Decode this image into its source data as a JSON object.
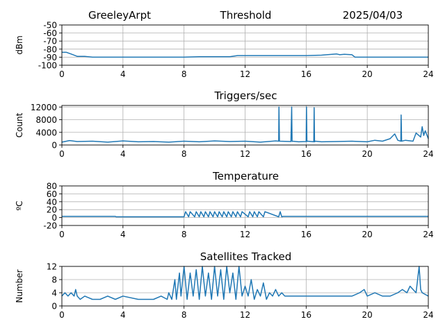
{
  "header": {
    "station": "GreeleyArpt",
    "date": "2025/04/03"
  },
  "colors": {
    "series": "#1f77b4",
    "grid": "#b0b0b0",
    "axis": "#000000"
  },
  "chart_data": [
    {
      "type": "line",
      "title": "Threshold",
      "xlabel": "",
      "ylabel": "dBm",
      "xlim": [
        0,
        24
      ],
      "ylim": [
        -100,
        -50
      ],
      "xticks": [
        0,
        4,
        8,
        12,
        16,
        20,
        24
      ],
      "yticks": [
        -100,
        -90,
        -80,
        -70,
        -60,
        -50
      ],
      "grid": true,
      "series": [
        {
          "x": [
            0,
            0.3,
            0.6,
            1.0,
            1.5,
            2,
            3,
            4,
            6,
            8,
            9,
            10,
            11,
            11.5,
            12,
            13,
            14,
            15,
            16,
            17,
            18,
            18.2,
            18.5,
            19,
            19.2,
            20,
            21,
            22,
            23,
            24
          ],
          "y": [
            -84,
            -84,
            -86,
            -89,
            -89,
            -90,
            -90,
            -90,
            -90,
            -90,
            -89.5,
            -89.5,
            -89.5,
            -88,
            -88,
            -88,
            -88,
            -88,
            -88,
            -87.5,
            -86,
            -87,
            -86.5,
            -87,
            -90,
            -90,
            -90,
            -90,
            -90,
            -90
          ]
        }
      ]
    },
    {
      "type": "line",
      "title": "Triggers/sec",
      "xlabel": "",
      "ylabel": "Count",
      "xlim": [
        0,
        24
      ],
      "ylim": [
        0,
        12500
      ],
      "xticks": [
        0,
        4,
        8,
        12,
        16,
        20,
        24
      ],
      "yticks": [
        0,
        4000,
        8000,
        12000
      ],
      "grid": true,
      "series": [
        {
          "x": [
            0,
            0.5,
            1,
            2,
            3,
            4,
            5,
            6,
            7,
            8,
            9,
            10,
            11,
            12,
            13,
            14,
            14.2,
            14.22,
            14.25,
            15,
            15.05,
            15.08,
            15.1,
            15.5,
            16,
            16.02,
            16.05,
            16.1,
            16.5,
            16.52,
            16.55,
            16.6,
            17,
            18,
            19,
            20,
            20.5,
            21,
            21.5,
            21.8,
            22,
            22.2,
            22.22,
            22.25,
            22.5,
            23,
            23.2,
            23.5,
            23.6,
            23.7,
            23.8,
            24
          ],
          "y": [
            900,
            1400,
            1100,
            1200,
            900,
            1300,
            1000,
            1100,
            900,
            1200,
            1000,
            1300,
            1100,
            1200,
            900,
            1300,
            1200,
            12000,
            1200,
            1100,
            12000,
            1100,
            1200,
            1000,
            1100,
            12000,
            1100,
            1200,
            1000,
            11800,
            1000,
            1200,
            1000,
            1100,
            1200,
            1000,
            1500,
            1200,
            2000,
            3500,
            1500,
            1200,
            9500,
            1200,
            1500,
            1200,
            3800,
            2500,
            5800,
            3000,
            4500,
            2000
          ]
        }
      ]
    },
    {
      "type": "line",
      "title": "Temperature",
      "xlabel": "",
      "ylabel": "ºC",
      "xlim": [
        0,
        24
      ],
      "ylim": [
        -20,
        80
      ],
      "xticks": [
        0,
        4,
        8,
        12,
        16,
        20,
        24
      ],
      "yticks": [
        -20,
        0,
        20,
        40,
        60,
        80
      ],
      "grid": true,
      "series": [
        {
          "x": [
            0,
            3.5,
            3.55,
            8,
            8.1,
            8.3,
            8.4,
            8.7,
            8.8,
            9.0,
            9.1,
            9.3,
            9.4,
            9.6,
            9.7,
            9.9,
            10.0,
            10.2,
            10.3,
            10.5,
            10.6,
            10.8,
            10.9,
            11.1,
            11.2,
            11.4,
            11.5,
            11.7,
            11.8,
            12.2,
            12.3,
            12.5,
            12.6,
            12.8,
            12.9,
            13.2,
            13.3,
            14.2,
            14.3,
            14.4,
            14.5,
            24
          ],
          "y": [
            3,
            3,
            2,
            2,
            15,
            2,
            15,
            2,
            15,
            2,
            15,
            2,
            15,
            2,
            15,
            2,
            15,
            2,
            15,
            2,
            15,
            2,
            15,
            2,
            15,
            2,
            15,
            2,
            15,
            2,
            15,
            2,
            15,
            2,
            15,
            2,
            15,
            2,
            15,
            2,
            3,
            3
          ]
        }
      ]
    },
    {
      "type": "line",
      "title": "Satellites Tracked",
      "xlabel": "",
      "ylabel": "Number",
      "xlim": [
        0,
        24
      ],
      "ylim": [
        0,
        12
      ],
      "xticks": [
        0,
        4,
        8,
        12,
        16,
        20,
        24
      ],
      "yticks": [
        0,
        4,
        8,
        12
      ],
      "grid": true,
      "series": [
        {
          "x": [
            0,
            0.2,
            0.4,
            0.6,
            0.8,
            0.9,
            1.0,
            1.2,
            1.5,
            2,
            2.5,
            3,
            3.5,
            4,
            5,
            6,
            6.5,
            6.9,
            7.0,
            7.2,
            7.4,
            7.5,
            7.7,
            7.8,
            8.0,
            8.2,
            8.4,
            8.6,
            8.8,
            9.0,
            9.2,
            9.4,
            9.6,
            9.8,
            10.0,
            10.2,
            10.4,
            10.6,
            10.8,
            11.0,
            11.2,
            11.4,
            11.6,
            11.8,
            12.0,
            12.2,
            12.4,
            12.6,
            12.8,
            13.0,
            13.2,
            13.4,
            13.6,
            13.8,
            14.0,
            14.2,
            14.4,
            14.6,
            15,
            16,
            17,
            18,
            19,
            19.5,
            19.8,
            20,
            20.5,
            21,
            21.5,
            22,
            22.3,
            22.6,
            22.8,
            23.0,
            23.2,
            23.4,
            23.5,
            23.6,
            24
          ],
          "y": [
            3,
            4,
            3,
            4,
            3,
            5,
            3,
            2,
            3,
            2,
            2,
            3,
            2,
            3,
            2,
            2,
            3,
            2,
            4,
            2,
            8,
            2,
            10,
            3,
            12,
            2,
            10,
            3,
            11,
            2,
            12,
            3,
            10,
            2,
            12,
            3,
            11,
            2,
            12,
            4,
            10,
            2,
            12,
            3,
            6,
            3,
            8,
            2,
            5,
            3,
            7,
            2,
            4,
            3,
            5,
            3,
            4,
            3,
            3,
            3,
            3,
            3,
            3,
            4,
            5,
            3,
            4,
            3,
            3,
            4,
            5,
            4,
            6,
            5,
            4,
            12,
            5,
            4,
            3
          ]
        }
      ]
    }
  ]
}
